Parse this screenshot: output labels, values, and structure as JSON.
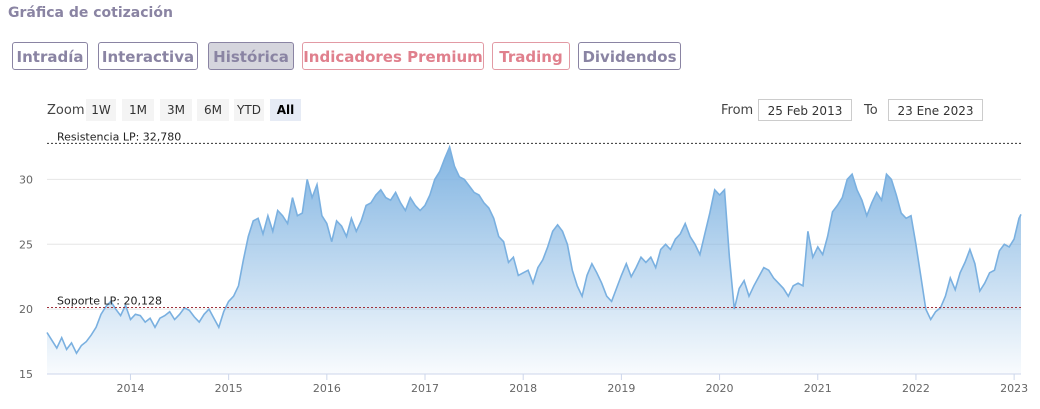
{
  "section_title": "Gráfica de cotización",
  "tabs": [
    {
      "label": "Intradía",
      "active": false,
      "premium": false
    },
    {
      "label": "Interactiva",
      "active": false,
      "premium": false
    },
    {
      "label": "Histórica",
      "active": true,
      "premium": false
    },
    {
      "label": "Indicadores Premium",
      "active": false,
      "premium": true
    },
    {
      "label": "Trading",
      "active": false,
      "premium": true
    },
    {
      "label": "Dividendos",
      "active": false,
      "premium": false
    }
  ],
  "zoom": {
    "label": "Zoom",
    "buttons": [
      "1W",
      "1M",
      "3M",
      "6M",
      "YTD",
      "All"
    ],
    "selected": "All"
  },
  "range": {
    "from_label": "From",
    "from_value": "25 Feb 2013",
    "to_label": "To",
    "to_value": "23 Ene 2023"
  },
  "colors": {
    "accent": "#8a84a3",
    "premium": "#e0808d",
    "line": "#7ab0e0",
    "support": "#a0303a",
    "resistance": "#333333"
  },
  "chart_data": {
    "type": "area",
    "x_unit": "year (decimal)",
    "xlim": [
      2013.15,
      2023.07
    ],
    "ylim": [
      15,
      33.5
    ],
    "yticks": [
      15,
      20,
      25,
      30
    ],
    "xticks": [
      2014,
      2015,
      2016,
      2017,
      2018,
      2019,
      2020,
      2021,
      2022,
      2023
    ],
    "grid": true,
    "legend": "none",
    "series": [
      {
        "x": [
          2013.15,
          2013.2,
          2013.25,
          2013.3,
          2013.35,
          2013.4,
          2013.45,
          2013.5,
          2013.55,
          2013.6,
          2013.65,
          2013.7,
          2013.75,
          2013.8,
          2013.85,
          2013.9,
          2013.95,
          2014.0,
          2014.05,
          2014.1,
          2014.15,
          2014.2,
          2014.25,
          2014.3,
          2014.35,
          2014.4,
          2014.45,
          2014.5,
          2014.55,
          2014.6,
          2014.65,
          2014.7,
          2014.75,
          2014.8,
          2014.85,
          2014.9,
          2014.95,
          2015.0,
          2015.05,
          2015.1,
          2015.15,
          2015.2,
          2015.25,
          2015.3,
          2015.35,
          2015.4,
          2015.45,
          2015.5,
          2015.55,
          2015.6,
          2015.65,
          2015.7,
          2015.75,
          2015.8,
          2015.85,
          2015.9,
          2015.95,
          2016.0,
          2016.05,
          2016.1,
          2016.15,
          2016.2,
          2016.25,
          2016.3,
          2016.35,
          2016.4,
          2016.45,
          2016.5,
          2016.55,
          2016.6,
          2016.65,
          2016.7,
          2016.75,
          2016.8,
          2016.85,
          2016.9,
          2016.95,
          2017.0,
          2017.05,
          2017.1,
          2017.15,
          2017.2,
          2017.25,
          2017.3,
          2017.35,
          2017.4,
          2017.45,
          2017.5,
          2017.55,
          2017.6,
          2017.65,
          2017.7,
          2017.75,
          2017.8,
          2017.85,
          2017.9,
          2017.95,
          2018.0,
          2018.05,
          2018.1,
          2018.15,
          2018.2,
          2018.25,
          2018.3,
          2018.35,
          2018.4,
          2018.45,
          2018.5,
          2018.55,
          2018.6,
          2018.65,
          2018.7,
          2018.75,
          2018.8,
          2018.85,
          2018.9,
          2018.95,
          2019.0,
          2019.05,
          2019.1,
          2019.15,
          2019.2,
          2019.25,
          2019.3,
          2019.35,
          2019.4,
          2019.45,
          2019.5,
          2019.55,
          2019.6,
          2019.65,
          2019.7,
          2019.75,
          2019.8,
          2019.85,
          2019.9,
          2019.95,
          2020.0,
          2020.05,
          2020.1,
          2020.15,
          2020.2,
          2020.25,
          2020.3,
          2020.35,
          2020.4,
          2020.45,
          2020.5,
          2020.55,
          2020.6,
          2020.65,
          2020.7,
          2020.75,
          2020.8,
          2020.85,
          2020.9,
          2020.95,
          2021.0,
          2021.05,
          2021.1,
          2021.15,
          2021.2,
          2021.25,
          2021.3,
          2021.35,
          2021.4,
          2021.45,
          2021.5,
          2021.55,
          2021.6,
          2021.65,
          2021.7,
          2021.75,
          2021.8,
          2021.85,
          2021.9,
          2021.95,
          2022.0,
          2022.05,
          2022.1,
          2022.15,
          2022.2,
          2022.25,
          2022.3,
          2022.35,
          2022.4,
          2022.45,
          2022.5,
          2022.55,
          2022.6,
          2022.65,
          2022.7,
          2022.75,
          2022.8,
          2022.85,
          2022.9,
          2022.95,
          2023.0,
          2023.05,
          2023.07
        ],
        "values": [
          18.2,
          17.6,
          17.0,
          17.8,
          16.9,
          17.4,
          16.6,
          17.2,
          17.5,
          18.0,
          18.6,
          19.6,
          20.2,
          20.6,
          20.0,
          19.5,
          20.3,
          19.2,
          19.6,
          19.5,
          19.0,
          19.3,
          18.6,
          19.3,
          19.5,
          19.8,
          19.2,
          19.6,
          20.1,
          19.9,
          19.4,
          19.0,
          19.6,
          20.0,
          19.3,
          18.6,
          19.8,
          20.6,
          21.0,
          21.8,
          23.8,
          25.6,
          26.8,
          27.0,
          25.8,
          27.2,
          26.0,
          27.6,
          27.2,
          26.6,
          28.6,
          27.2,
          27.4,
          30.0,
          28.6,
          29.6,
          27.2,
          26.6,
          25.2,
          26.8,
          26.4,
          25.6,
          27.0,
          26.0,
          26.8,
          28.0,
          28.2,
          28.8,
          29.2,
          28.6,
          28.4,
          29.0,
          28.2,
          27.6,
          28.6,
          28.0,
          27.6,
          28.0,
          28.8,
          30.0,
          30.6,
          31.6,
          32.5,
          31.0,
          30.2,
          30.0,
          29.5,
          29.0,
          28.8,
          28.2,
          27.8,
          27.0,
          25.6,
          25.2,
          23.6,
          24.0,
          22.6,
          22.8,
          23.0,
          22.0,
          23.2,
          23.8,
          24.8,
          26.0,
          26.5,
          26.0,
          25.0,
          23.0,
          21.8,
          21.0,
          22.6,
          23.5,
          22.8,
          22.0,
          21.0,
          20.6,
          21.6,
          22.6,
          23.5,
          22.5,
          23.2,
          24.0,
          23.6,
          24.0,
          23.2,
          24.6,
          25.0,
          24.6,
          25.4,
          25.8,
          26.6,
          25.6,
          25.0,
          24.2,
          25.8,
          27.4,
          29.2,
          28.8,
          29.2,
          24.0,
          20.0,
          21.6,
          22.2,
          21.0,
          21.8,
          22.5,
          23.2,
          23.0,
          22.4,
          22.0,
          21.6,
          21.0,
          21.8,
          22.0,
          21.8,
          26.0,
          24.0,
          24.8,
          24.2,
          25.6,
          27.5,
          28.0,
          28.6,
          30.0,
          30.4,
          29.2,
          28.4,
          27.2,
          28.2,
          29.0,
          28.4,
          30.4,
          30.0,
          28.8,
          27.4,
          27.0,
          27.2,
          25.0,
          22.5,
          20.0,
          19.2,
          19.8,
          20.1,
          21.0,
          22.4,
          21.5,
          22.8,
          23.6,
          24.6,
          23.5,
          21.4,
          22.0,
          22.8,
          23.0,
          24.5,
          25.0,
          24.8,
          25.4,
          27.0,
          27.3
        ]
      }
    ],
    "annotations": [
      {
        "label": "Resistencia LP: 32,780",
        "y": 32.78,
        "style": "dashed",
        "color": "#333333"
      },
      {
        "label": "Soporte LP: 20,128",
        "y": 20.128,
        "style": "dashed",
        "color": "#a0303a"
      }
    ]
  }
}
